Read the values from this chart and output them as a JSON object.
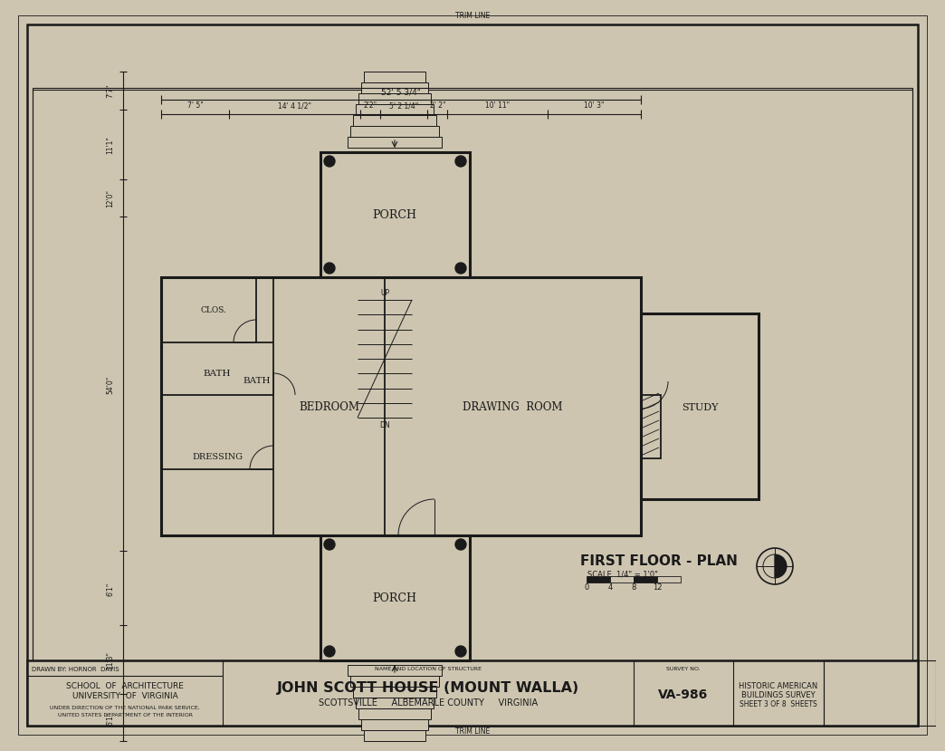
{
  "bg_color": "#cdc5b0",
  "line_color": "#1a1a1a",
  "title": "FIRST FLOOR - PLAN",
  "scale_text": "SCALE  1/4\" = 1'0\"",
  "main_title": "JOHN SCOTT HOUSE (MOUNT WALLA)",
  "subtitle": "SCOTTSVILLE     ALBEMARLE COUNTY     VIRGINIA",
  "survey_no": "VA-986",
  "drawn_by": "DRAWN BY: HORNOR  DAVIS",
  "institution1": "SCHOOL  OF  ARCHITECTURE",
  "institution2": "UNIVERSITY  OF  VIRGINIA",
  "institution3": "UNDER DIRECTION OF THE NATIONAL PARK SERVICE,",
  "institution4": "UNITED STATES DEPARTMENT OF THE INTERIOR",
  "habs1": "HISTORIC AMERICAN",
  "habs2": "BUILDINGS SURVEY",
  "habs3": "SHEET 3 OF 8  SHEETS",
  "trim_line": "TRIM LINE",
  "dim_top": "52' 5 3/4\"",
  "dim_segments": [
    "7' 5\"",
    "14' 4 1/2\"",
    "2'2\"",
    "5' 2 1/4\"",
    "2' 2\"",
    "10' 11\"",
    "10' 3\""
  ],
  "dim_left": [
    "6'1\"",
    "11'3\"",
    "6'1\"",
    "54'0\"",
    "12'0\"",
    "11'1\"",
    "7'7\""
  ],
  "scale_nums": [
    "0",
    "4",
    "8",
    "12"
  ]
}
